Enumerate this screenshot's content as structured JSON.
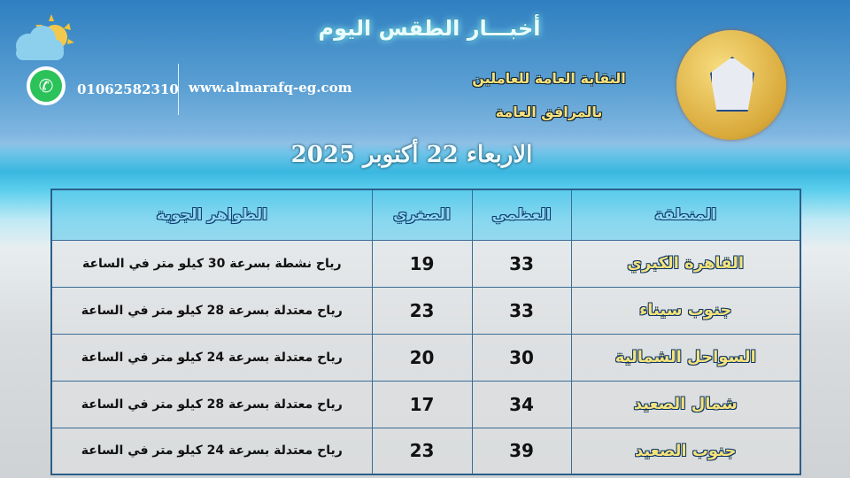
{
  "header": {
    "title": "أخبـــار الطقس اليوم",
    "phone": "01062582310",
    "website": "www.almarafq-eg.com",
    "union_line1": "النقابة العامة للعاملين",
    "union_line2": "بالمرافق العامة",
    "logo_text": "النقابة العامة للعاملين بالمرافق العامة",
    "date": "الاربعاء 22 أكتوبر 2025"
  },
  "icons": {
    "weather": "cloud-sun-icon",
    "whatsapp": "whatsapp-icon"
  },
  "table": {
    "headers": [
      "المنطقة",
      "العظمي",
      "الصغري",
      "الظواهر الجوية"
    ],
    "rows": [
      [
        "القاهرة الكبري",
        "33",
        "19",
        "رياح نشطة بسرعة 30 كيلو متر في الساعة"
      ],
      [
        "جنوب سيناء",
        "33",
        "23",
        "رياح معتدلة بسرعة 28 كيلو متر في الساعة"
      ],
      [
        "السواحل الشمالية",
        "30",
        "20",
        "رياح معتدلة بسرعة 24 كيلو متر في الساعة"
      ],
      [
        "شمال الصعيد",
        "34",
        "17",
        "رياح معتدلة بسرعة 28 كيلو متر في الساعة"
      ],
      [
        "جنوب الصعيد",
        "39",
        "23",
        "رياح معتدلة بسرعة 24 كيلو متر في الساعة"
      ]
    ]
  }
}
